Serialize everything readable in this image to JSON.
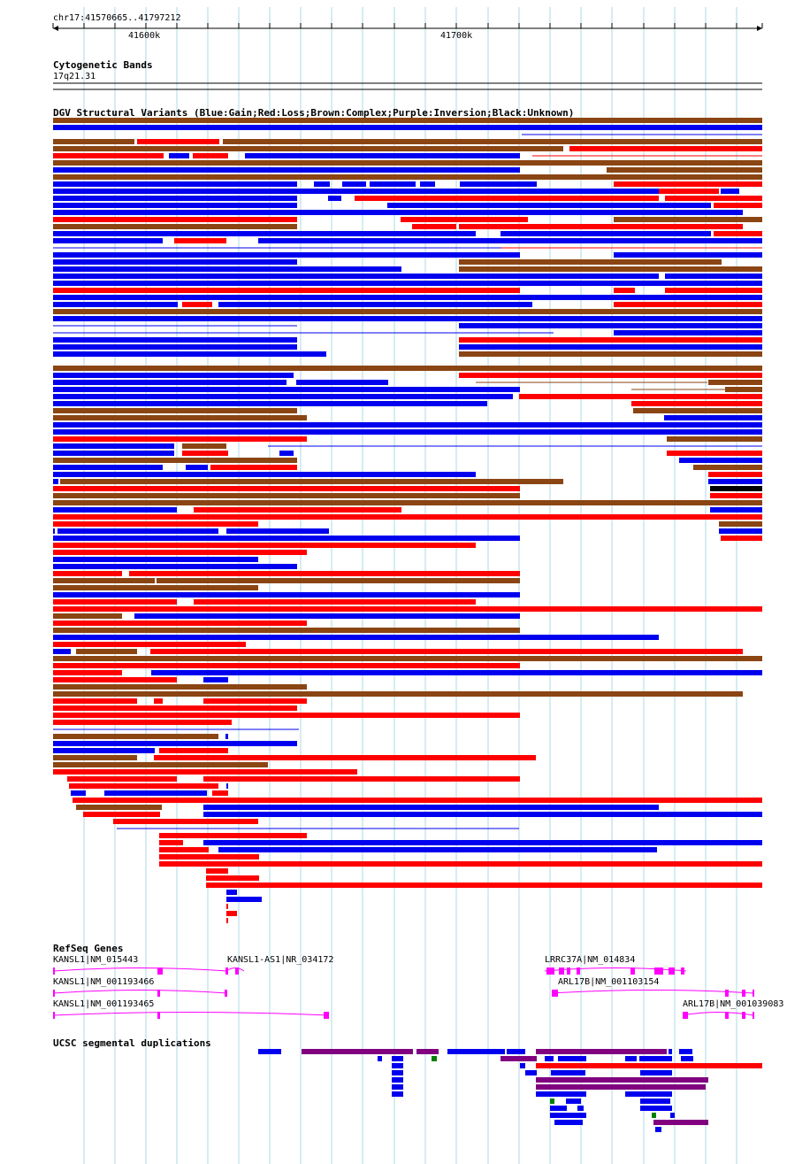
{
  "ruler": {
    "range_label": "chr17:41570665..41797212",
    "ticks": [
      "41600k",
      "41700k"
    ]
  },
  "tracks": {
    "cytoband": {
      "title": "Cytogenetic Bands",
      "band": "17q21.31"
    },
    "dgv": {
      "title": "DGV Structural Variants (Blue:Gain;Red:Loss;Brown:Complex;Purple:Inversion;Black:Unknown)"
    },
    "refseq": {
      "title": "RefSeq Genes",
      "genes": [
        {
          "label": "KANSL1|NM_015443"
        },
        {
          "label": "KANSL1-AS1|NR_034172"
        },
        {
          "label": "LRRC37A|NM_014834"
        },
        {
          "label": "KANSL1|NM_001193466"
        },
        {
          "label": "ARL17B|NM_001103154"
        },
        {
          "label": "KANSL1|NM_001193465"
        },
        {
          "label": "ARL17B|NM_001039083"
        }
      ]
    },
    "segdup": {
      "title": "UCSC segmental duplications"
    }
  },
  "colors": {
    "gain": "#0000ee",
    "loss": "#ff0000",
    "complex": "#8b4513",
    "inversion": "#800080",
    "unknown": "#000000",
    "gene": "#ff00ff",
    "segdup_green": "#008000",
    "gridline": "#add8e6"
  }
}
